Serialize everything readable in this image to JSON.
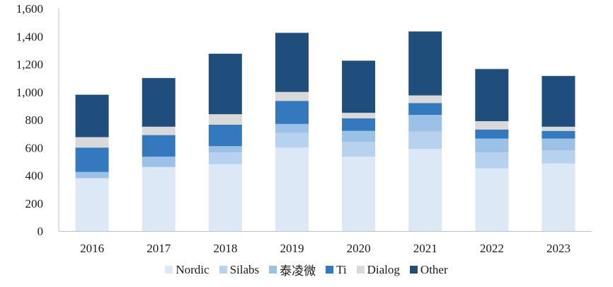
{
  "chart_data": {
    "type": "bar",
    "stacked": true,
    "title": "",
    "xlabel": "",
    "ylabel": "",
    "ylim": [
      0,
      1600
    ],
    "yticks": [
      0,
      200,
      400,
      600,
      800,
      1000,
      1200,
      1400,
      1600
    ],
    "ytick_labels": [
      "0",
      "200",
      "400",
      "600",
      "800",
      "1,000",
      "1,200",
      "1,400",
      "1,600"
    ],
    "categories": [
      "2016",
      "2017",
      "2018",
      "2019",
      "2020",
      "2021",
      "2022",
      "2023"
    ],
    "grid": false,
    "legend_position": "bottom",
    "series": [
      {
        "name": "Nordic",
        "color": "#dce8f5",
        "values": [
          380,
          460,
          480,
          600,
          535,
          590,
          450,
          485
        ]
      },
      {
        "name": "Silabs",
        "color": "#b7d2ee",
        "values": [
          0,
          0,
          85,
          105,
          105,
          125,
          115,
          95
        ]
      },
      {
        "name": "泰凌微",
        "color": "#9cc1e6",
        "values": [
          45,
          75,
          45,
          65,
          80,
          120,
          100,
          85
        ]
      },
      {
        "name": "Ti",
        "color": "#3478be",
        "values": [
          175,
          155,
          155,
          165,
          90,
          85,
          65,
          55
        ]
      },
      {
        "name": "Dialog",
        "color": "#d9d9d9",
        "values": [
          75,
          60,
          75,
          65,
          40,
          55,
          60,
          30
        ]
      },
      {
        "name": "Other",
        "color": "#1f4e7d",
        "values": [
          305,
          350,
          435,
          425,
          375,
          460,
          375,
          365
        ]
      }
    ]
  }
}
